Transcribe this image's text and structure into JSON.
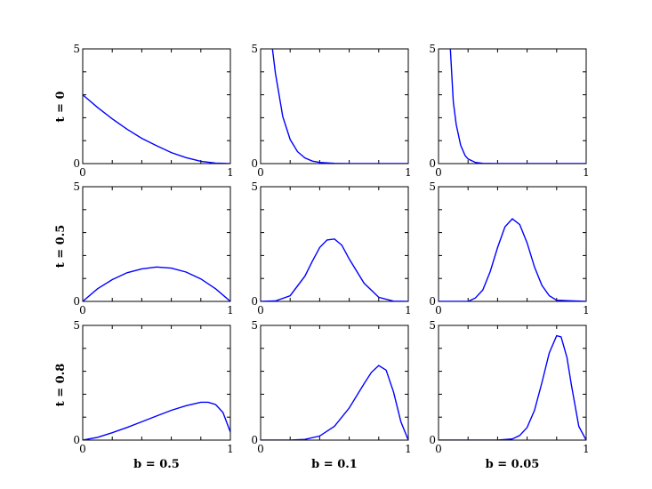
{
  "chart_data": {
    "type": "line",
    "layout": "3x3 grid of small multiples",
    "column_labels": [
      "b = 0.5",
      "b = 0.1",
      "b = 0.05"
    ],
    "row_labels": [
      "t = 0",
      "t = 0.5",
      "t = 0.8"
    ],
    "xlim": [
      0,
      1
    ],
    "ylim": [
      0,
      5
    ],
    "x_tick_labels": [
      "0",
      "1"
    ],
    "y_tick_labels": [
      "0",
      "5"
    ],
    "grid": false,
    "line_color": "#0000ff",
    "panels": [
      {
        "row": 0,
        "col": 0,
        "x": [
          0,
          0.1,
          0.2,
          0.3,
          0.4,
          0.5,
          0.6,
          0.7,
          0.8,
          0.9,
          1.0
        ],
        "y": [
          3.0,
          2.45,
          1.95,
          1.5,
          1.1,
          0.78,
          0.48,
          0.26,
          0.1,
          0.02,
          0.0
        ]
      },
      {
        "row": 0,
        "col": 1,
        "x": [
          0.08,
          0.1,
          0.15,
          0.2,
          0.25,
          0.3,
          0.35,
          0.4,
          0.5,
          0.6,
          0.8,
          1.0
        ],
        "y": [
          5.0,
          3.95,
          2.05,
          1.05,
          0.52,
          0.25,
          0.11,
          0.05,
          0.01,
          0.0,
          0.0,
          0.0
        ]
      },
      {
        "row": 0,
        "col": 2,
        "x": [
          0.08,
          0.1,
          0.12,
          0.15,
          0.18,
          0.2,
          0.25,
          0.3,
          0.4,
          0.6,
          0.8,
          1.0
        ],
        "y": [
          5.0,
          2.7,
          1.7,
          0.8,
          0.35,
          0.2,
          0.05,
          0.01,
          0.0,
          0.0,
          0.0,
          0.0
        ]
      },
      {
        "row": 1,
        "col": 0,
        "x": [
          0,
          0.1,
          0.2,
          0.3,
          0.4,
          0.5,
          0.6,
          0.7,
          0.8,
          0.9,
          1.0
        ],
        "y": [
          0.0,
          0.55,
          0.95,
          1.25,
          1.42,
          1.5,
          1.45,
          1.28,
          0.98,
          0.55,
          0.0
        ]
      },
      {
        "row": 1,
        "col": 1,
        "x": [
          0,
          0.1,
          0.2,
          0.3,
          0.35,
          0.4,
          0.45,
          0.5,
          0.55,
          0.6,
          0.7,
          0.8,
          0.9,
          1.0
        ],
        "y": [
          0.0,
          0.02,
          0.25,
          1.1,
          1.75,
          2.35,
          2.68,
          2.72,
          2.45,
          1.85,
          0.8,
          0.18,
          0.01,
          0.0
        ]
      },
      {
        "row": 1,
        "col": 2,
        "x": [
          0,
          0.2,
          0.25,
          0.3,
          0.35,
          0.4,
          0.45,
          0.5,
          0.55,
          0.6,
          0.65,
          0.7,
          0.75,
          0.8,
          1.0
        ],
        "y": [
          0.0,
          0.0,
          0.15,
          0.5,
          1.3,
          2.35,
          3.25,
          3.6,
          3.35,
          2.55,
          1.5,
          0.7,
          0.25,
          0.05,
          0.0
        ]
      },
      {
        "row": 2,
        "col": 0,
        "x": [
          0,
          0.1,
          0.2,
          0.3,
          0.4,
          0.5,
          0.6,
          0.7,
          0.8,
          0.85,
          0.9,
          0.95,
          1.0
        ],
        "y": [
          0.0,
          0.12,
          0.32,
          0.55,
          0.8,
          1.05,
          1.3,
          1.5,
          1.65,
          1.65,
          1.55,
          1.2,
          0.35
        ]
      },
      {
        "row": 2,
        "col": 1,
        "x": [
          0,
          0.2,
          0.3,
          0.4,
          0.5,
          0.6,
          0.7,
          0.75,
          0.8,
          0.85,
          0.9,
          0.95,
          1.0
        ],
        "y": [
          0.0,
          0.0,
          0.03,
          0.18,
          0.6,
          1.4,
          2.45,
          2.95,
          3.25,
          3.05,
          2.1,
          0.8,
          0.0
        ]
      },
      {
        "row": 2,
        "col": 2,
        "x": [
          0,
          0.4,
          0.5,
          0.55,
          0.6,
          0.65,
          0.7,
          0.75,
          0.8,
          0.83,
          0.87,
          0.9,
          0.95,
          1.0
        ],
        "y": [
          0.0,
          0.0,
          0.05,
          0.2,
          0.55,
          1.3,
          2.5,
          3.8,
          4.55,
          4.5,
          3.6,
          2.4,
          0.6,
          0.0
        ]
      }
    ]
  }
}
